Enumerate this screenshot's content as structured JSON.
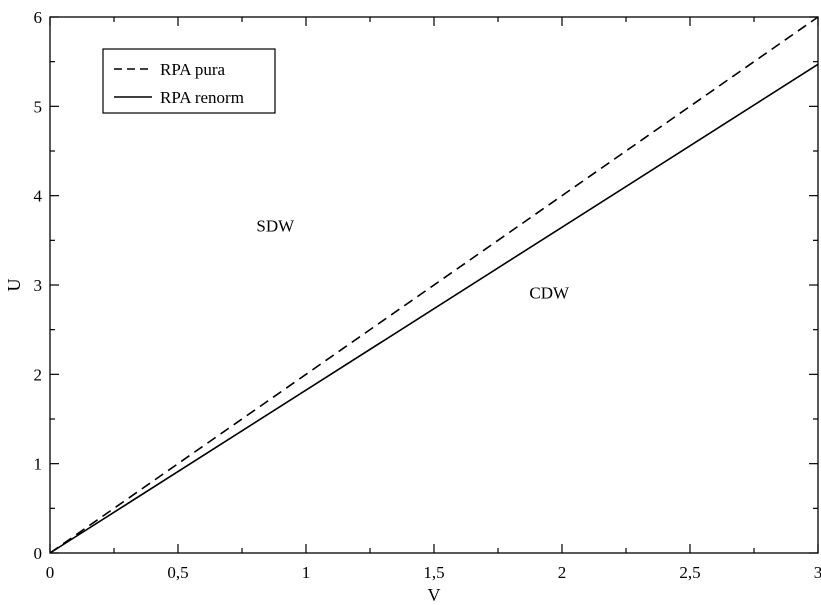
{
  "chart_data": {
    "type": "line",
    "title": "",
    "xlabel": "V",
    "ylabel": "U",
    "xlim": [
      0,
      3
    ],
    "ylim": [
      0,
      6
    ],
    "x_ticks": [
      0,
      0.5,
      1,
      1.5,
      2,
      2.5,
      3
    ],
    "x_tick_labels": [
      "0",
      "0,5",
      "1",
      "1,5",
      "2",
      "2,5",
      "3"
    ],
    "y_ticks": [
      0,
      1,
      2,
      3,
      4,
      5,
      6
    ],
    "y_tick_labels": [
      "0",
      "1",
      "2",
      "3",
      "4",
      "5",
      "6"
    ],
    "grid": false,
    "legend_position": "top-left",
    "series": [
      {
        "name": "RPA pura",
        "style": "dashed",
        "color": "#000000",
        "x": [
          0,
          3
        ],
        "y": [
          0,
          6.0
        ]
      },
      {
        "name": "RPA renorm",
        "style": "solid",
        "color": "#000000",
        "x": [
          0,
          3
        ],
        "y": [
          0,
          5.47
        ]
      }
    ],
    "annotations": [
      {
        "text": "SDW",
        "x": 0.88,
        "y": 3.6
      },
      {
        "text": "CDW",
        "x": 1.95,
        "y": 2.85
      }
    ]
  }
}
